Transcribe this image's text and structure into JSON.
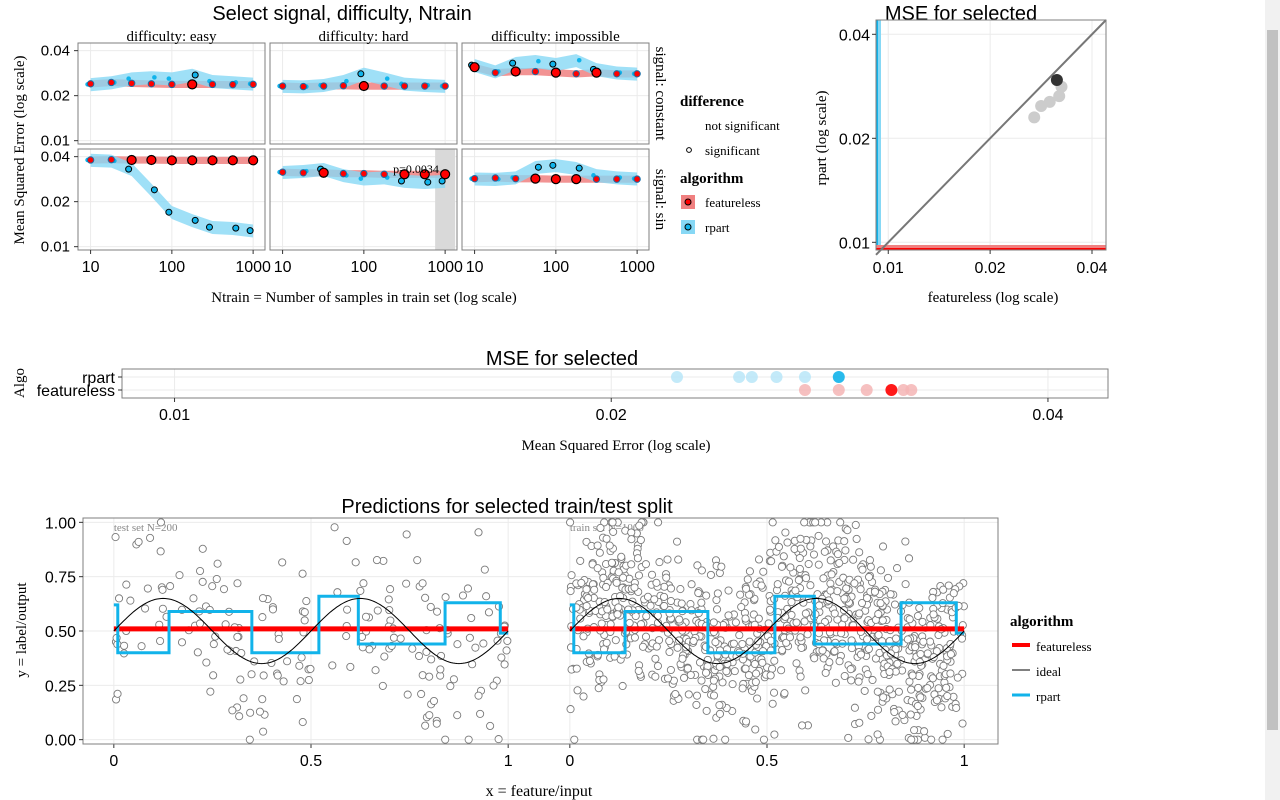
{
  "panel1": {
    "title": "Select signal, difficulty, Ntrain",
    "ylabel": "Mean Squared Error (log scale)",
    "xlabel": "Ntrain = Number of samples in train set (log scale)",
    "ytick_labels": [
      "0.01",
      "0.02",
      "0.04"
    ],
    "xtick_labels": [
      "10",
      "100",
      "1000"
    ],
    "columns": [
      "difficulty: easy",
      "difficulty: hard",
      "difficulty: impossible"
    ],
    "rows": [
      "signal: constant",
      "signal: sin"
    ],
    "annotation": "p=0.0034",
    "legend": {
      "difference_title": "difference",
      "difference_items": [
        "not significant",
        "significant"
      ],
      "algorithm_title": "algorithm",
      "algorithm_items": [
        "featureless",
        "rpart"
      ]
    }
  },
  "panel2": {
    "title": "MSE for selected",
    "xlabel": "featureless (log scale)",
    "ylabel": "rpart (log scale)",
    "xtick_labels": [
      "0.01",
      "0.02",
      "0.04"
    ],
    "ytick_labels": [
      "0.01",
      "0.02",
      "0.04"
    ]
  },
  "panel3": {
    "title": "MSE for selected",
    "ylabel": "Algo",
    "xlabel": "Mean Squared Error (log scale)",
    "categories": [
      "rpart",
      "featureless"
    ],
    "xtick_labels": [
      "0.01",
      "0.02",
      "0.04"
    ]
  },
  "panel4": {
    "title": "Predictions for selected train/test split",
    "xlabel": "x = feature/input",
    "ylabel": "y = label/output",
    "ytick_labels": [
      "0.00",
      "0.25",
      "0.50",
      "0.75",
      "1.00"
    ],
    "xtick_labels": [
      "0",
      "0.5",
      "1"
    ],
    "facets": [
      "test set N=200",
      "train set N=1000"
    ],
    "legend_title": "algorithm",
    "legend_items": [
      "featureless",
      "ideal",
      "rpart"
    ]
  },
  "colors": {
    "featureless": "#ff0000",
    "featureless_band": "#f08080",
    "rpart": "#11b3ea",
    "rpart_band": "#87d8f5",
    "ideal": "#000000",
    "panel_border": "#7f7f7f",
    "grid": "#ebebeb"
  },
  "chart_data": [
    {
      "type": "line",
      "title": "Select signal, difficulty, Ntrain",
      "xlabel": "Ntrain = Number of samples in train set (log scale)",
      "ylabel": "Mean Squared Error (log scale)",
      "xscale": "log",
      "yscale": "log",
      "xlim": [
        7,
        1400
      ],
      "ylim": [
        0.0095,
        0.045
      ],
      "x": [
        10,
        18,
        32,
        56,
        100,
        178,
        316,
        562,
        1000
      ],
      "facets": [
        {
          "column": "difficulty: easy",
          "row": "signal: constant",
          "series": [
            {
              "name": "featureless",
              "values": [
                0.024,
                0.0245,
                0.0242,
                0.024,
                0.0238,
                0.0238,
                0.0238,
                0.0237,
                0.0238
              ]
            },
            {
              "name": "rpart",
              "values": [
                0.0238,
                0.0245,
                0.026,
                0.0265,
                0.026,
                0.0275,
                0.025,
                0.0245,
                0.024
              ]
            }
          ],
          "significant": [
            0,
            0,
            0,
            0,
            0,
            1,
            0,
            0,
            0
          ]
        },
        {
          "column": "difficulty: hard",
          "row": "signal: constant",
          "series": [
            {
              "name": "featureless",
              "values": [
                0.0232,
                0.023,
                0.0232,
                0.0233,
                0.0232,
                0.0232,
                0.0232,
                0.0232,
                0.0232
              ]
            },
            {
              "name": "rpart",
              "values": [
                0.0232,
                0.023,
                0.0235,
                0.025,
                0.028,
                0.026,
                0.024,
                0.0235,
                0.0232
              ]
            }
          ],
          "significant": [
            0,
            0,
            0,
            0,
            1,
            0,
            0,
            0,
            0
          ]
        },
        {
          "column": "difficulty: impossible",
          "row": "signal: constant",
          "series": [
            {
              "name": "featureless",
              "values": [
                0.031,
                0.0285,
                0.029,
                0.029,
                0.0285,
                0.028,
                0.0285,
                0.028,
                0.028
              ]
            },
            {
              "name": "rpart",
              "values": [
                0.032,
                0.029,
                0.033,
                0.034,
                0.0325,
                0.0345,
                0.03,
                0.0285,
                0.028
              ]
            }
          ],
          "significant": [
            1,
            0,
            1,
            0,
            1,
            0,
            1,
            0,
            0
          ]
        },
        {
          "column": "difficulty: easy",
          "row": "signal: sin",
          "series": [
            {
              "name": "featureless",
              "values": [
                0.038,
                0.0382,
                0.038,
                0.038,
                0.0378,
                0.0378,
                0.0378,
                0.0378,
                0.0378
              ]
            },
            {
              "name": "rpart",
              "values": [
                0.038,
                0.0375,
                0.033,
                0.024,
                0.017,
                0.015,
                0.0135,
                0.0133,
                0.0128
              ]
            }
          ],
          "significant": [
            0,
            0,
            1,
            1,
            1,
            1,
            1,
            1,
            1
          ]
        },
        {
          "column": "difficulty: hard",
          "row": "signal: sin",
          "series": [
            {
              "name": "featureless",
              "values": [
                0.0315,
                0.0312,
                0.0312,
                0.0308,
                0.0308,
                0.0305,
                0.0305,
                0.0305,
                0.0305
              ]
            },
            {
              "name": "rpart",
              "values": [
                0.0315,
                0.032,
                0.033,
                0.03,
                0.0285,
                0.029,
                0.0275,
                0.027,
                0.0275
              ]
            }
          ],
          "significant": [
            0,
            0,
            1,
            0,
            0,
            0,
            1,
            1,
            1
          ]
        },
        {
          "column": "difficulty: impossible",
          "row": "signal: sin",
          "series": [
            {
              "name": "featureless",
              "values": [
                0.0285,
                0.0288,
                0.0285,
                0.0285,
                0.0283,
                0.0283,
                0.0283,
                0.0283,
                0.0283
              ]
            },
            {
              "name": "rpart",
              "values": [
                0.0285,
                0.0283,
                0.029,
                0.034,
                0.035,
                0.0335,
                0.03,
                0.029,
                0.0285
              ]
            }
          ],
          "significant": [
            0,
            0,
            0,
            1,
            1,
            1,
            0,
            0,
            0
          ]
        }
      ],
      "selected_ntrain": 1000,
      "annotation": "p=0.0034"
    },
    {
      "type": "scatter",
      "title": "MSE for selected",
      "xlabel": "featureless (log scale)",
      "ylabel": "rpart (log scale)",
      "xscale": "log",
      "yscale": "log",
      "xlim": [
        0.0092,
        0.044
      ],
      "ylim": [
        0.0095,
        0.044
      ],
      "points": [
        {
          "x": 0.0315,
          "y": 0.0295,
          "selected": true
        },
        {
          "x": 0.0325,
          "y": 0.0282,
          "selected": false
        },
        {
          "x": 0.032,
          "y": 0.0265,
          "selected": false
        },
        {
          "x": 0.03,
          "y": 0.0255,
          "selected": false
        },
        {
          "x": 0.0283,
          "y": 0.0248,
          "selected": false
        },
        {
          "x": 0.027,
          "y": 0.023,
          "selected": false
        }
      ],
      "diagonal": true
    },
    {
      "type": "scatter",
      "title": "MSE for selected",
      "xlabel": "Mean Squared Error (log scale)",
      "ylabel": "Algo",
      "xscale": "log",
      "xlim": [
        0.0092,
        0.044
      ],
      "categories": [
        "rpart",
        "featureless"
      ],
      "series": [
        {
          "name": "rpart",
          "values": [
            0.0222,
            0.0245,
            0.025,
            0.026,
            0.0272,
            0.0287
          ],
          "selected_index": 5
        },
        {
          "name": "featureless",
          "values": [
            0.0272,
            0.0287,
            0.03,
            0.0312,
            0.0318,
            0.0322
          ],
          "selected_index": 3
        }
      ]
    },
    {
      "type": "scatter",
      "title": "Predictions for selected train/test split",
      "xlabel": "x = feature/input",
      "ylabel": "y = label/output",
      "xlim": [
        -0.03,
        1.03
      ],
      "ylim": [
        -0.02,
        1.02
      ],
      "facets": [
        "test set N=200",
        "train set N=1000"
      ],
      "featureless_value": 0.51,
      "ideal": "0.5 + 0.15*sin(4*pi*x)",
      "rpart_steps": [
        {
          "x0": 0.0,
          "x1": 0.01,
          "y": 0.62
        },
        {
          "x0": 0.01,
          "x1": 0.14,
          "y": 0.4
        },
        {
          "x0": 0.14,
          "x1": 0.35,
          "y": 0.59
        },
        {
          "x0": 0.35,
          "x1": 0.52,
          "y": 0.4
        },
        {
          "x0": 0.52,
          "x1": 0.62,
          "y": 0.66
        },
        {
          "x0": 0.62,
          "x1": 0.84,
          "y": 0.44
        },
        {
          "x0": 0.84,
          "x1": 0.98,
          "y": 0.63
        },
        {
          "x0": 0.98,
          "x1": 1.0,
          "y": 0.49
        }
      ],
      "noise_sd": 0.2
    }
  ]
}
